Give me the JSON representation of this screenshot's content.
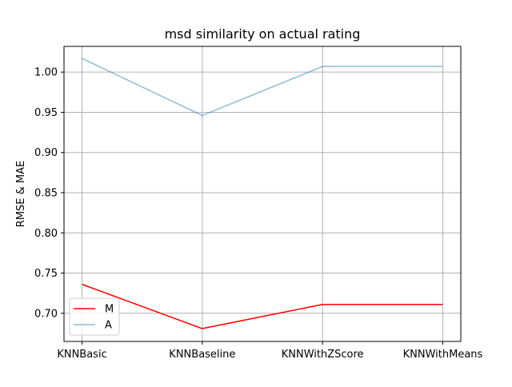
{
  "chart_data": {
    "type": "line",
    "title": "msd similarity on actual rating",
    "xlabel": "",
    "ylabel": "RMSE & MAE",
    "categories": [
      "KNNBasic",
      "KNNBaseline",
      "KNNWithZScore",
      "KNNWithMeans"
    ],
    "ylim": [
      0.665,
      1.032
    ],
    "yticks": [
      0.7,
      0.75,
      0.8,
      0.85,
      0.9,
      0.95,
      1.0
    ],
    "ytick_labels": [
      "0.70",
      "0.75",
      "0.80",
      "0.85",
      "0.90",
      "0.95",
      "1.00"
    ],
    "grid": true,
    "legend_position": "lower-left",
    "series": [
      {
        "name": "M",
        "color": "#ff0000",
        "alpha": 1.0,
        "values": [
          0.736,
          0.681,
          0.711,
          0.711
        ]
      },
      {
        "name": "A",
        "color": "#1f77b4",
        "alpha": 0.5,
        "values": [
          1.017,
          0.946,
          1.007,
          1.007
        ]
      }
    ]
  }
}
